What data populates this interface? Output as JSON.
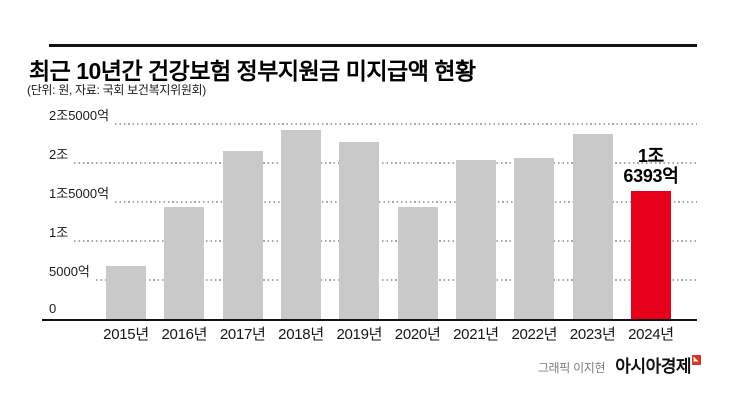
{
  "header": {
    "title": "최근 10년간 건강보험 정부지원금 미지급액 현황",
    "subtitle": "(단위: 원, 자료: 국회 보건복지위원회)"
  },
  "chart_data": {
    "type": "bar",
    "title": "최근 10년간 건강보험 정부지원금 미지급액 현황",
    "unit_note": "(단위: 원, 자료: 국회 보건복지위원회)",
    "categories": [
      "2015년",
      "2016년",
      "2017년",
      "2018년",
      "2019년",
      "2020년",
      "2021년",
      "2022년",
      "2023년",
      "2024년"
    ],
    "values_eok": [
      6800,
      14400,
      21500,
      24200,
      22650,
      14400,
      20400,
      20600,
      23700,
      16393
    ],
    "ylim": [
      0,
      25000
    ],
    "y_ticks": [
      {
        "label": "2조5000억",
        "value": 25000
      },
      {
        "label": "2조",
        "value": 20000
      },
      {
        "label": "1조5000억",
        "value": 15000
      },
      {
        "label": "1조",
        "value": 10000
      },
      {
        "label": "5000억",
        "value": 5000
      },
      {
        "label": "0",
        "value": 0
      }
    ],
    "grid": "horizontal-dotted",
    "legend": "none",
    "bar_color": "#c9c9c9",
    "highlight_color": "#e60019",
    "highlight_index": 9,
    "highlight_label_lines": [
      "1조",
      "6393억"
    ]
  },
  "footer": {
    "credit": "그래픽 이지현",
    "brand": "아시아경제",
    "brand_mark_color": "#dd3327"
  }
}
